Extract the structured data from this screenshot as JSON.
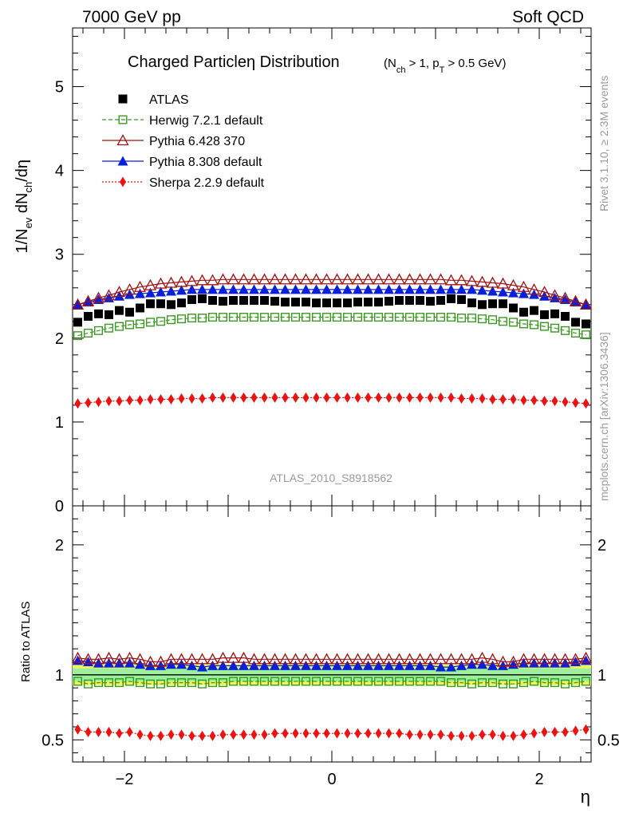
{
  "header": {
    "left": "7000 GeV pp",
    "right": "Soft QCD"
  },
  "side_text": {
    "rivet": "Rivet 3.1.10, ≥ 2.3M events",
    "mcplots": "mcplots.cern.ch [arXiv:1306.3436]"
  },
  "chart_data": {
    "type": "scatter",
    "title": "Charged Particleη Distribution",
    "subtitle_parts": [
      "(N",
      "ch",
      " > 1, p",
      "T",
      " > 0.5 GeV)"
    ],
    "analysis_id": "ATLAS_2010_S8918562",
    "xlabel": "η",
    "ylabel": "1/N_ev dN_ch/dη",
    "ratio_ylabel": "Ratio to ATLAS",
    "xlim": [
      -2.5,
      2.5
    ],
    "ylim_main": [
      0,
      5.7
    ],
    "ylim_ratio": [
      0.33,
      2.3
    ],
    "main_yticks": [
      {
        "v": 0,
        "label": "0"
      },
      {
        "v": 1,
        "label": "1"
      },
      {
        "v": 2,
        "label": "2"
      },
      {
        "v": 3,
        "label": "3"
      },
      {
        "v": 4,
        "label": "4"
      },
      {
        "v": 5,
        "label": "5"
      }
    ],
    "ratio_yticks": [
      {
        "v": 0.5,
        "label": "0.5"
      },
      {
        "v": 1,
        "label": "1"
      },
      {
        "v": 2,
        "label": "2"
      }
    ],
    "xticks": [
      {
        "v": -2,
        "label": "−2"
      },
      {
        "v": 0,
        "label": "0"
      },
      {
        "v": 2,
        "label": "2"
      }
    ],
    "eta": [
      -2.45,
      -2.35,
      -2.25,
      -2.15,
      -2.05,
      -1.95,
      -1.85,
      -1.75,
      -1.65,
      -1.55,
      -1.45,
      -1.35,
      -1.25,
      -1.15,
      -1.05,
      -0.95,
      -0.85,
      -0.75,
      -0.65,
      -0.55,
      -0.45,
      -0.35,
      -0.25,
      -0.15,
      -0.05,
      0.05,
      0.15,
      0.25,
      0.35,
      0.45,
      0.55,
      0.65,
      0.75,
      0.85,
      0.95,
      1.05,
      1.15,
      1.25,
      1.35,
      1.45,
      1.55,
      1.65,
      1.75,
      1.85,
      1.95,
      2.05,
      2.15,
      2.25,
      2.35,
      2.45
    ],
    "series": [
      {
        "name": "ATLAS",
        "marker": "square-filled",
        "color": "#000000",
        "line": "none",
        "values": [
          2.19,
          2.26,
          2.29,
          2.28,
          2.33,
          2.31,
          2.36,
          2.41,
          2.41,
          2.4,
          2.42,
          2.46,
          2.47,
          2.45,
          2.44,
          2.45,
          2.45,
          2.45,
          2.45,
          2.44,
          2.43,
          2.43,
          2.43,
          2.42,
          2.42,
          2.42,
          2.42,
          2.43,
          2.43,
          2.43,
          2.44,
          2.45,
          2.45,
          2.45,
          2.44,
          2.45,
          2.47,
          2.46,
          2.42,
          2.4,
          2.41,
          2.41,
          2.36,
          2.31,
          2.33,
          2.28,
          2.29,
          2.26,
          2.19,
          2.17
        ],
        "ratio": [
          1,
          1,
          1,
          1,
          1,
          1,
          1,
          1,
          1,
          1,
          1,
          1,
          1,
          1,
          1,
          1,
          1,
          1,
          1,
          1,
          1,
          1,
          1,
          1,
          1,
          1,
          1,
          1,
          1,
          1,
          1,
          1,
          1,
          1,
          1,
          1,
          1,
          1,
          1,
          1,
          1,
          1,
          1,
          1,
          1,
          1,
          1,
          1,
          1,
          1
        ]
      },
      {
        "name": "Herwig 7.2.1 default",
        "marker": "square-open",
        "color": "#3a9a20",
        "line": "dashed",
        "values": [
          2.03,
          2.06,
          2.09,
          2.12,
          2.14,
          2.16,
          2.17,
          2.19,
          2.2,
          2.22,
          2.23,
          2.24,
          2.24,
          2.25,
          2.25,
          2.25,
          2.25,
          2.25,
          2.25,
          2.25,
          2.25,
          2.25,
          2.25,
          2.25,
          2.25,
          2.25,
          2.25,
          2.25,
          2.25,
          2.25,
          2.25,
          2.25,
          2.25,
          2.25,
          2.25,
          2.25,
          2.25,
          2.24,
          2.24,
          2.23,
          2.22,
          2.2,
          2.19,
          2.17,
          2.16,
          2.14,
          2.12,
          2.09,
          2.06,
          2.04
        ],
        "ratio": [
          0.95,
          0.93,
          0.94,
          0.94,
          0.94,
          0.95,
          0.94,
          0.93,
          0.93,
          0.94,
          0.94,
          0.94,
          0.93,
          0.94,
          0.94,
          0.95,
          0.95,
          0.95,
          0.95,
          0.95,
          0.95,
          0.95,
          0.95,
          0.95,
          0.95,
          0.95,
          0.95,
          0.95,
          0.95,
          0.95,
          0.95,
          0.95,
          0.95,
          0.95,
          0.95,
          0.95,
          0.94,
          0.94,
          0.93,
          0.94,
          0.94,
          0.93,
          0.93,
          0.94,
          0.95,
          0.94,
          0.94,
          0.93,
          0.94,
          0.95
        ]
      },
      {
        "name": "Pythia 6.428 370",
        "marker": "triangle-open",
        "color": "#a01010",
        "line": "solid",
        "values": [
          2.4,
          2.44,
          2.48,
          2.51,
          2.55,
          2.58,
          2.61,
          2.63,
          2.65,
          2.66,
          2.67,
          2.68,
          2.69,
          2.69,
          2.7,
          2.7,
          2.7,
          2.7,
          2.7,
          2.7,
          2.7,
          2.7,
          2.7,
          2.7,
          2.7,
          2.7,
          2.7,
          2.7,
          2.7,
          2.7,
          2.7,
          2.7,
          2.7,
          2.7,
          2.7,
          2.7,
          2.69,
          2.69,
          2.68,
          2.67,
          2.66,
          2.65,
          2.63,
          2.61,
          2.58,
          2.55,
          2.51,
          2.48,
          2.44,
          2.4
        ],
        "ratio": [
          1.13,
          1.12,
          1.12,
          1.13,
          1.12,
          1.13,
          1.12,
          1.1,
          1.1,
          1.12,
          1.12,
          1.12,
          1.12,
          1.12,
          1.13,
          1.13,
          1.13,
          1.12,
          1.12,
          1.12,
          1.12,
          1.12,
          1.12,
          1.12,
          1.12,
          1.12,
          1.12,
          1.12,
          1.12,
          1.12,
          1.12,
          1.12,
          1.12,
          1.12,
          1.12,
          1.12,
          1.12,
          1.12,
          1.12,
          1.13,
          1.12,
          1.1,
          1.1,
          1.12,
          1.12,
          1.12,
          1.12,
          1.12,
          1.12,
          1.13
        ]
      },
      {
        "name": "Pythia 8.308 default",
        "marker": "triangle-filled",
        "color": "#0a1fd8",
        "line": "solid",
        "values": [
          2.4,
          2.43,
          2.46,
          2.48,
          2.5,
          2.52,
          2.53,
          2.54,
          2.55,
          2.56,
          2.57,
          2.58,
          2.58,
          2.58,
          2.58,
          2.58,
          2.58,
          2.58,
          2.58,
          2.58,
          2.58,
          2.58,
          2.58,
          2.58,
          2.58,
          2.58,
          2.58,
          2.58,
          2.58,
          2.58,
          2.58,
          2.58,
          2.58,
          2.58,
          2.58,
          2.58,
          2.58,
          2.58,
          2.58,
          2.57,
          2.56,
          2.55,
          2.54,
          2.53,
          2.52,
          2.5,
          2.48,
          2.46,
          2.43,
          2.4
        ],
        "ratio": [
          1.11,
          1.1,
          1.09,
          1.09,
          1.09,
          1.09,
          1.08,
          1.07,
          1.07,
          1.08,
          1.08,
          1.07,
          1.06,
          1.07,
          1.07,
          1.07,
          1.07,
          1.07,
          1.07,
          1.07,
          1.07,
          1.07,
          1.07,
          1.07,
          1.07,
          1.07,
          1.07,
          1.07,
          1.07,
          1.07,
          1.07,
          1.07,
          1.07,
          1.07,
          1.07,
          1.06,
          1.06,
          1.07,
          1.08,
          1.08,
          1.07,
          1.07,
          1.08,
          1.09,
          1.09,
          1.09,
          1.09,
          1.09,
          1.1,
          1.11
        ]
      },
      {
        "name": "Sherpa 2.2.9 default",
        "marker": "diamond-filled",
        "color": "#ee1111",
        "line": "dotted",
        "values": [
          1.22,
          1.23,
          1.24,
          1.25,
          1.25,
          1.26,
          1.26,
          1.27,
          1.27,
          1.27,
          1.28,
          1.28,
          1.28,
          1.29,
          1.29,
          1.29,
          1.29,
          1.29,
          1.29,
          1.29,
          1.29,
          1.29,
          1.29,
          1.29,
          1.29,
          1.29,
          1.29,
          1.29,
          1.29,
          1.29,
          1.29,
          1.29,
          1.29,
          1.29,
          1.29,
          1.29,
          1.29,
          1.28,
          1.28,
          1.28,
          1.27,
          1.27,
          1.27,
          1.26,
          1.26,
          1.25,
          1.25,
          1.24,
          1.23,
          1.22
        ],
        "ratio": [
          0.58,
          0.56,
          0.56,
          0.56,
          0.55,
          0.56,
          0.54,
          0.53,
          0.53,
          0.54,
          0.54,
          0.53,
          0.53,
          0.53,
          0.54,
          0.54,
          0.54,
          0.54,
          0.54,
          0.55,
          0.55,
          0.55,
          0.55,
          0.55,
          0.55,
          0.55,
          0.55,
          0.55,
          0.55,
          0.55,
          0.55,
          0.55,
          0.54,
          0.54,
          0.54,
          0.54,
          0.53,
          0.53,
          0.53,
          0.54,
          0.54,
          0.53,
          0.53,
          0.54,
          0.55,
          0.56,
          0.56,
          0.56,
          0.57,
          0.58
        ]
      }
    ],
    "data_uncertainty": {
      "stat_green": 0.05,
      "total_yellow": 0.08
    }
  }
}
